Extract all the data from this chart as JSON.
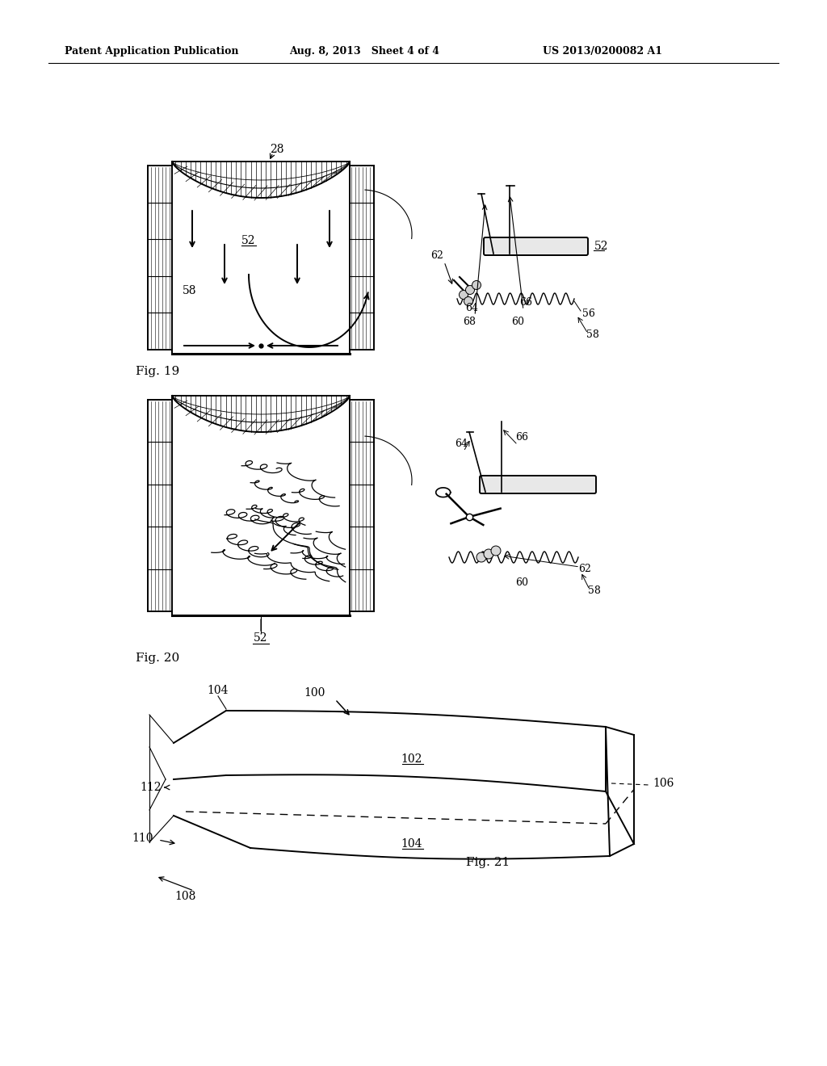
{
  "bg_color": "#ffffff",
  "header_left": "Patent Application Publication",
  "header_mid": "Aug. 8, 2013   Sheet 4 of 4",
  "header_right": "US 2013/0200082 A1",
  "fig19_label": "Fig. 19",
  "fig20_label": "Fig. 20",
  "fig21_label": "Fig. 21",
  "lw": 1.4,
  "lw_thin": 0.8,
  "lw_thick": 2.2,
  "font_size_header": 9,
  "font_size_label": 10,
  "font_size_fig": 11,
  "container19": {
    "bx0": 183,
    "bx1": 463,
    "by0": 200,
    "by1": 438
  },
  "container20": {
    "bx0": 183,
    "bx1": 463,
    "by0": 490,
    "by1": 762
  },
  "mech19": {
    "ox": 536,
    "oy": 230
  },
  "mech20": {
    "ox": 536,
    "oy": 525
  }
}
